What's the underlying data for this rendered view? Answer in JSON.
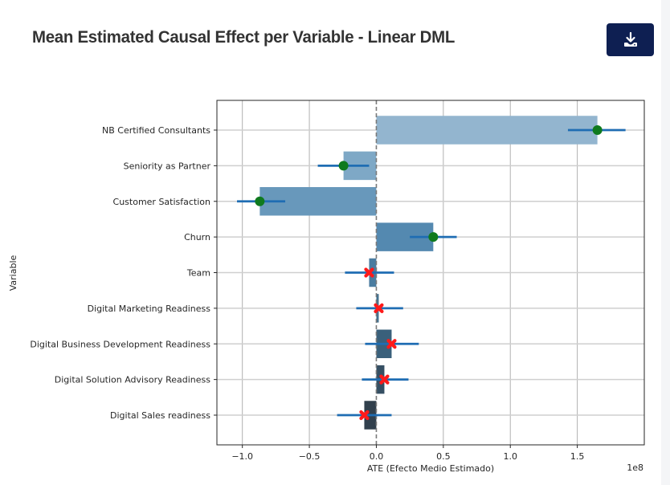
{
  "header": {
    "title": "Mean Estimated Causal Effect per Variable - Linear DML",
    "download_button": {
      "icon": "download-icon",
      "label": "Download"
    }
  },
  "colors": {
    "button_bg": "#0e1f52",
    "significant_marker": "#0f7a1e",
    "nonsignificant_marker": "#ff1a1a",
    "error_bar": "#1f6db3",
    "zero_line": "#7a7a7a",
    "grid": "#b0b0b0"
  },
  "chart_data": {
    "type": "bar",
    "orientation": "horizontal",
    "title": "",
    "xlabel": "ATE (Efecto Medio Estimado)",
    "ylabel": "Variable",
    "x_scale_label": "1e8",
    "x_unit_multiplier": 100000000,
    "xlim": [
      -1.19,
      2.0
    ],
    "xticks": [
      -1.0,
      -0.5,
      0.0,
      0.5,
      1.0,
      1.5
    ],
    "xtick_labels": [
      "−1.0",
      "−0.5",
      "0.0",
      "0.5",
      "1.0",
      "1.5"
    ],
    "grid": true,
    "reference_line": {
      "x": 0,
      "style": "dashed"
    },
    "categories": [
      "NB Certified Consultants",
      "Seniority as Partner",
      "Customer Satisfaction",
      "Churn",
      "Team",
      "Digital Marketing Readiness",
      "Digital Business Development Readiness",
      "Digital Solution Advisory Readiness",
      "Digital Sales readiness"
    ],
    "series": [
      {
        "name": "ATE",
        "values": [
          1.65,
          -0.245,
          -0.87,
          0.425,
          -0.054,
          0.018,
          0.114,
          0.06,
          -0.09
        ],
        "ci_lower": [
          1.43,
          -0.437,
          -1.04,
          0.25,
          -0.234,
          -0.15,
          -0.084,
          -0.108,
          -0.293
        ],
        "ci_upper": [
          1.86,
          -0.054,
          -0.68,
          0.6,
          0.132,
          0.2,
          0.317,
          0.24,
          0.114
        ],
        "significant": [
          true,
          true,
          true,
          true,
          false,
          false,
          false,
          false,
          false
        ],
        "bar_colors": [
          "#93b5cf",
          "#7ea8c6",
          "#6898bb",
          "#5489b0",
          "#4a7ca0",
          "#42708f",
          "#3a607b",
          "#354f63",
          "#31404d"
        ]
      }
    ]
  }
}
